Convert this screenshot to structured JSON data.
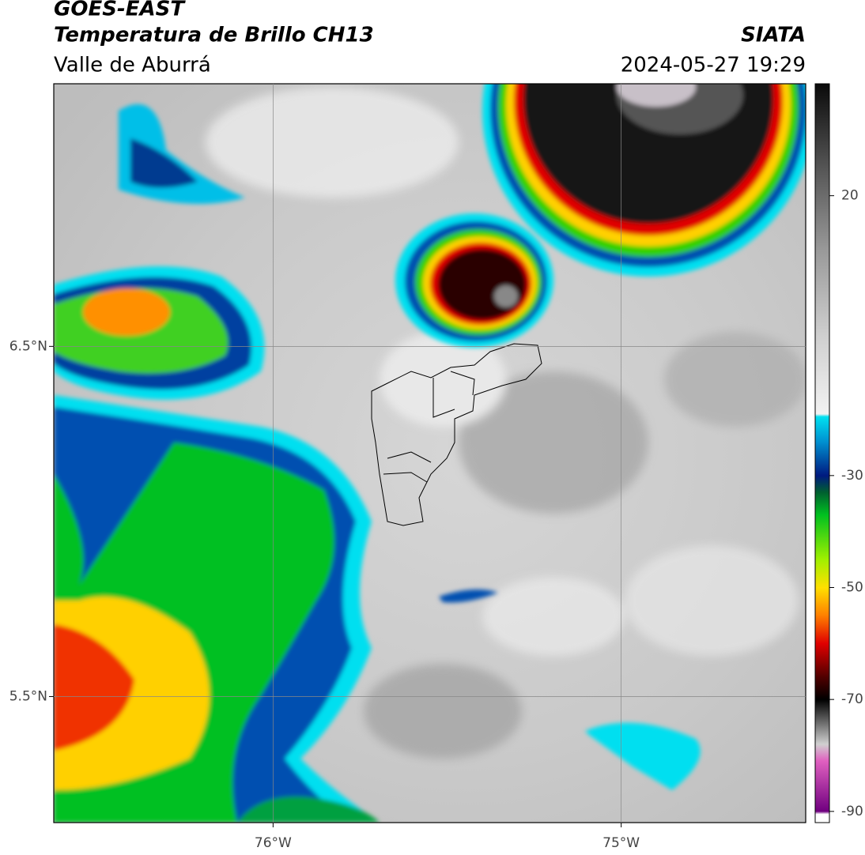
{
  "header": {
    "title": "GOES-EAST",
    "subtitle": "Temperatura de Brillo CH13",
    "region": "Valle de Aburrá",
    "source": "SIATA",
    "timestamp": "2024-05-27 19:29"
  },
  "map": {
    "lon_lim": [
      -76.63,
      -74.47
    ],
    "lat_lim": [
      5.14,
      7.25
    ],
    "lon_ticks": [
      {
        "value": -76,
        "label": "76°W"
      },
      {
        "value": -75,
        "label": "75°W"
      }
    ],
    "lat_ticks": [
      {
        "value": 6.5,
        "label": "6.5°N"
      },
      {
        "value": 5.5,
        "label": "5.5°N"
      }
    ],
    "grid": true
  },
  "colorbar": {
    "lim": [
      -92,
      40
    ],
    "ticks": [
      20,
      -30,
      -50,
      -70,
      -90
    ],
    "colors": [
      {
        "value": 40,
        "color": "#0a0a0a"
      },
      {
        "value": 25,
        "color": "#555555"
      },
      {
        "value": 10,
        "color": "#9a9a9a"
      },
      {
        "value": -5,
        "color": "#cfcfcf"
      },
      {
        "value": -19,
        "color": "#f2f2f2"
      },
      {
        "value": -19.5,
        "color": "#00e0f0"
      },
      {
        "value": -24,
        "color": "#0090d0"
      },
      {
        "value": -30,
        "color": "#001a80"
      },
      {
        "value": -33,
        "color": "#006030"
      },
      {
        "value": -37,
        "color": "#00c020"
      },
      {
        "value": -45,
        "color": "#a0f000"
      },
      {
        "value": -50,
        "color": "#ffe000"
      },
      {
        "value": -55,
        "color": "#ff8000"
      },
      {
        "value": -60,
        "color": "#e00000"
      },
      {
        "value": -66,
        "color": "#500000"
      },
      {
        "value": -70,
        "color": "#000000"
      },
      {
        "value": -78,
        "color": "#d0d0d0"
      },
      {
        "value": -81,
        "color": "#e060c0"
      },
      {
        "value": -90,
        "color": "#700080"
      },
      {
        "value": -90.5,
        "color": "#ffffff"
      },
      {
        "value": -92,
        "color": "#ffffff"
      }
    ]
  }
}
